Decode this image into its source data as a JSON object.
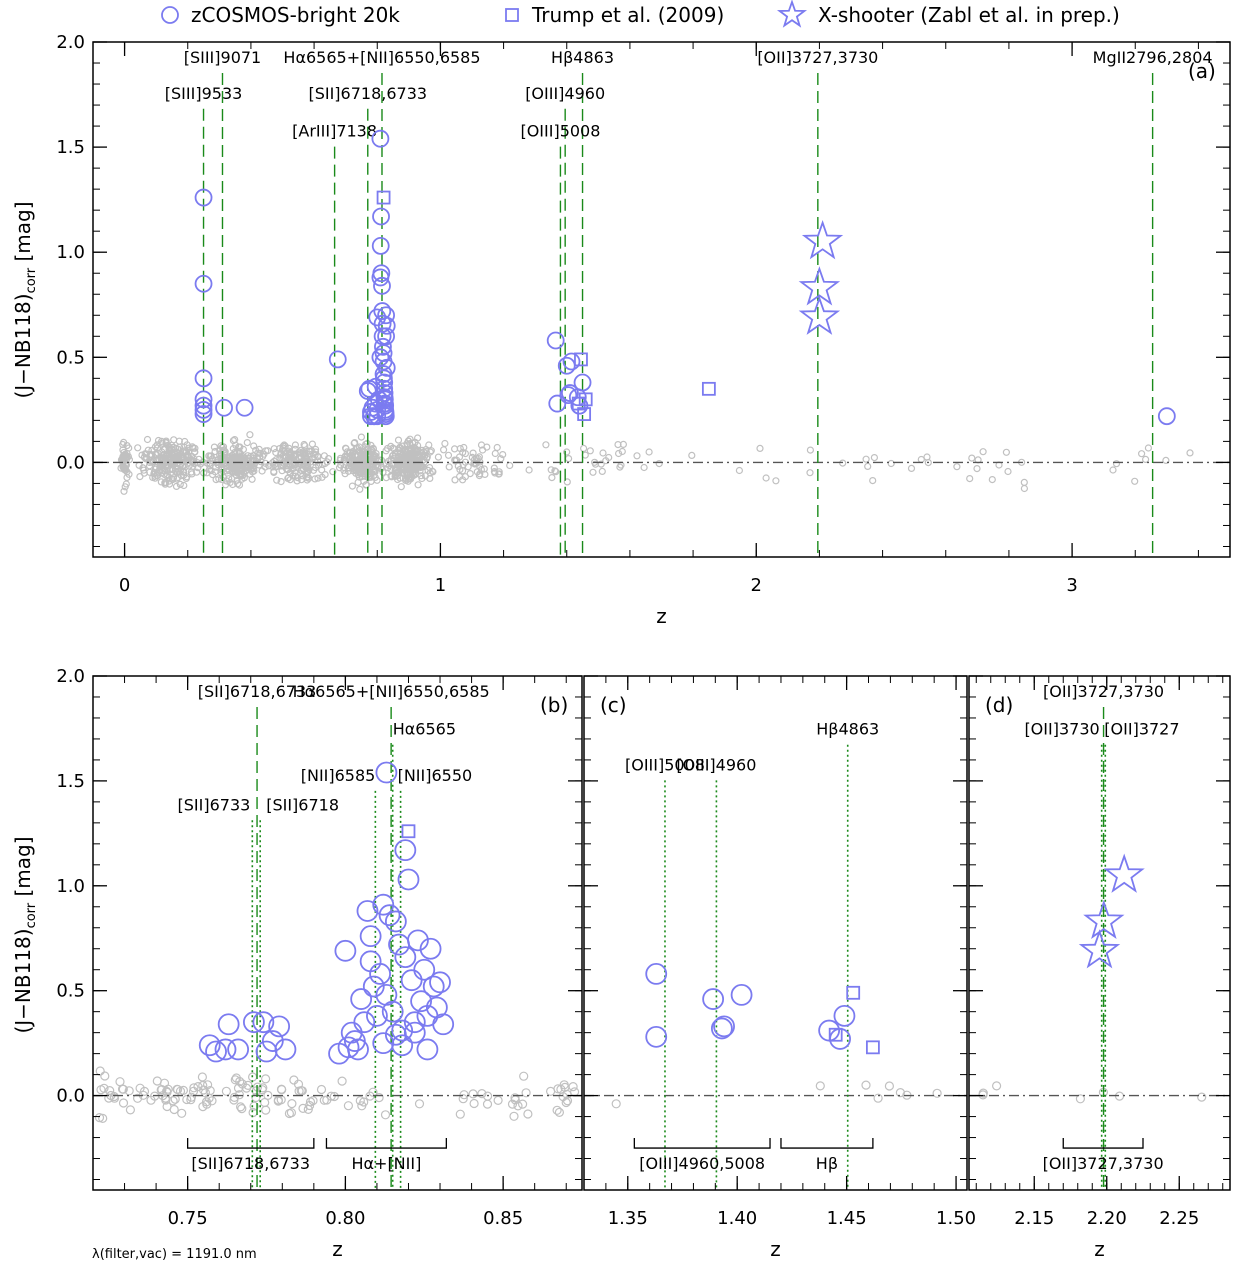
{
  "legend": [
    {
      "marker": "circle",
      "label": "zCOSMOS-bright 20k"
    },
    {
      "marker": "square",
      "label": "Trump et al. (2009)"
    },
    {
      "marker": "star",
      "label": "X-shooter (Zabl et al. in prep.)"
    }
  ],
  "ylabel_main": "(J−NB118)",
  "ylabel_sub": "corr",
  "ylabel_unit": " [mag]",
  "footnote": "λ(filter,vac) = 1191.0 nm",
  "colors": {
    "highlight": "#7b7bf0",
    "background": "#c0c0c0",
    "line": "#1a8a1a",
    "zero": "#555555"
  },
  "chart_data": [
    {
      "type": "scatter",
      "panel": "(a)",
      "xlabel": "z",
      "xlim": [
        -0.1,
        3.5
      ],
      "ylim": [
        -0.45,
        2.0
      ],
      "xticks": [
        0,
        1,
        2,
        3
      ],
      "yticks": [
        0.0,
        0.5,
        1.0,
        1.5,
        2.0
      ],
      "xtick_labels": [
        "0",
        "1",
        "2",
        "3"
      ],
      "ytick_labels": [
        "0.0",
        "0.5",
        "1.0",
        "1.5",
        "2.0"
      ],
      "lines": [
        {
          "z": 0.25,
          "style": "dashed",
          "label": "[SIII]9533",
          "ly": 1.73
        },
        {
          "z": 0.31,
          "style": "dashed",
          "label": "[SIII]9071",
          "ly": 1.9
        },
        {
          "z": 0.665,
          "style": "dashed",
          "label": "[ArIII]7138",
          "ly": 1.55
        },
        {
          "z": 0.77,
          "style": "dashed",
          "label": "[SII]6718,6733",
          "ly": 1.73
        },
        {
          "z": 0.815,
          "style": "dashed",
          "label": "Hα6565+[NII]6550,6585",
          "ly": 1.9
        },
        {
          "z": 1.38,
          "style": "dashed",
          "label": "[OIII]5008",
          "ly": 1.55
        },
        {
          "z": 1.395,
          "style": "dashed",
          "label": "[OIII]4960",
          "ly": 1.73
        },
        {
          "z": 1.45,
          "style": "dashed",
          "label": "Hβ4863",
          "ly": 1.9
        },
        {
          "z": 2.195,
          "style": "dashed",
          "label": "[OII]3727,3730",
          "ly": 1.9
        },
        {
          "z": 3.255,
          "style": "dashed",
          "label": "MgII2796,2804",
          "ly": 1.9
        }
      ],
      "series": [
        {
          "name": "zCOSMOS-bright 20k",
          "marker": "circle",
          "x": [
            0.25,
            0.25,
            0.25,
            0.25,
            0.25,
            0.25,
            0.25,
            0.315,
            0.38,
            0.675,
            0.77,
            0.775,
            0.78,
            0.79,
            0.795,
            0.8,
            0.81,
            0.81,
            0.81,
            0.811,
            0.812,
            0.813,
            0.815,
            0.816,
            0.817,
            0.817,
            0.818,
            0.82,
            0.82,
            0.82,
            0.821,
            0.822,
            0.822,
            0.823,
            0.823,
            0.824,
            0.824,
            0.825,
            0.825,
            0.826,
            0.826,
            0.827,
            0.828,
            0.828,
            0.83,
            0.83,
            0.79,
            0.8,
            0.78,
            0.785,
            0.805,
            0.8,
            0.795,
            1.365,
            1.37,
            1.4,
            1.405,
            1.41,
            1.415,
            1.435,
            1.44,
            1.45,
            3.3
          ],
          "y": [
            1.26,
            0.85,
            0.4,
            0.3,
            0.27,
            0.25,
            0.23,
            0.26,
            0.26,
            0.49,
            0.34,
            0.35,
            0.22,
            0.22,
            0.36,
            0.69,
            1.54,
            0.88,
            0.5,
            1.03,
            1.17,
            0.9,
            0.84,
            0.72,
            0.66,
            0.6,
            0.55,
            0.52,
            0.48,
            0.42,
            0.4,
            0.38,
            0.35,
            0.33,
            0.31,
            0.3,
            0.28,
            0.27,
            0.25,
            0.24,
            0.23,
            0.22,
            0.6,
            0.7,
            0.45,
            0.65,
            0.22,
            0.22,
            0.24,
            0.26,
            0.3,
            0.25,
            0.28,
            0.58,
            0.28,
            0.46,
            0.32,
            0.33,
            0.48,
            0.31,
            0.27,
            0.38,
            0.22
          ]
        },
        {
          "name": "Trump et al. (2009)",
          "marker": "square",
          "x": [
            0.82,
            1.438,
            1.445,
            1.455,
            1.46,
            1.85
          ],
          "y": [
            1.26,
            0.28,
            0.49,
            0.23,
            0.3,
            0.35
          ]
        },
        {
          "name": "X-shooter (Zabl et al. in prep.)",
          "marker": "star",
          "x": [
            2.2,
            2.2,
            2.21
          ],
          "y": [
            0.69,
            0.83,
            1.05
          ]
        }
      ]
    },
    {
      "type": "scatter",
      "panel": "(b)",
      "xlabel": "z",
      "xlim": [
        0.72,
        0.875
      ],
      "ylim": [
        -0.45,
        2.0
      ],
      "xticks": [
        0.75,
        0.8,
        0.85
      ],
      "yticks": [
        0.0,
        0.5,
        1.0,
        1.5,
        2.0
      ],
      "xtick_labels": [
        "0.75",
        "0.80",
        "0.85"
      ],
      "ytick_labels": [
        "0.0",
        "0.5",
        "1.0",
        "1.5",
        "2.0"
      ],
      "lines": [
        {
          "z": 0.7705,
          "style": "dotted",
          "label": "[SII]6733",
          "ly": 1.36
        },
        {
          "z": 0.773,
          "style": "dotted",
          "label": "[SII]6718",
          "ly": 1.36
        },
        {
          "z": 0.772,
          "style": "dashed",
          "label": "[SII]6718,6733",
          "ly": 1.9
        },
        {
          "z": 0.8095,
          "style": "dotted",
          "label": "[NII]6585",
          "ly": 1.5
        },
        {
          "z": 0.815,
          "style": "dotted",
          "label": "Hα6565",
          "ly": 1.72
        },
        {
          "z": 0.8175,
          "style": "dotted",
          "label": "[NII]6550",
          "ly": 1.5
        },
        {
          "z": 0.8145,
          "style": "dashed",
          "label": "Hα6565+[NII]6550,6585",
          "ly": 1.9
        }
      ],
      "brackets": [
        {
          "x0": 0.75,
          "x1": 0.79,
          "label": "[SII]6718,6733"
        },
        {
          "x0": 0.794,
          "x1": 0.832,
          "label": "Hα+[NII]"
        }
      ],
      "series": [
        {
          "name": "zCOSMOS-bright 20k",
          "marker": "circle",
          "x": [
            0.757,
            0.759,
            0.762,
            0.763,
            0.766,
            0.771,
            0.774,
            0.775,
            0.777,
            0.779,
            0.781,
            0.798,
            0.8,
            0.801,
            0.802,
            0.804,
            0.805,
            0.806,
            0.807,
            0.808,
            0.809,
            0.81,
            0.811,
            0.812,
            0.813,
            0.814,
            0.815,
            0.816,
            0.817,
            0.818,
            0.819,
            0.82,
            0.821,
            0.822,
            0.823,
            0.824,
            0.825,
            0.826,
            0.827,
            0.828,
            0.829,
            0.83,
            0.831,
            0.812,
            0.819,
            0.822,
            0.808,
            0.813,
            0.803,
            0.818,
            0.826,
            0.816
          ],
          "y": [
            0.24,
            0.21,
            0.22,
            0.34,
            0.22,
            0.35,
            0.35,
            0.21,
            0.26,
            0.33,
            0.22,
            0.2,
            0.69,
            0.23,
            0.3,
            0.22,
            0.46,
            0.35,
            0.88,
            0.76,
            0.52,
            0.38,
            0.58,
            0.25,
            1.54,
            0.86,
            0.4,
            0.83,
            0.72,
            0.31,
            0.66,
            1.03,
            0.55,
            0.35,
            0.74,
            0.45,
            0.6,
            0.38,
            0.7,
            0.52,
            0.42,
            0.54,
            0.34,
            0.91,
            1.17,
            0.3,
            0.64,
            0.48,
            0.26,
            0.24,
            0.22,
            0.29
          ]
        },
        {
          "name": "Trump et al. (2009)",
          "marker": "square",
          "x": [
            0.82
          ],
          "y": [
            1.26
          ]
        }
      ]
    },
    {
      "type": "scatter",
      "panel": "(c)",
      "xlabel": "z",
      "xlim": [
        1.33,
        1.505
      ],
      "ylim": [
        -0.45,
        2.0
      ],
      "xticks": [
        1.35,
        1.4,
        1.45,
        1.5
      ],
      "xtick_labels": [
        "1.35",
        "1.40",
        "1.45",
        "1.50"
      ],
      "lines": [
        {
          "z": 1.367,
          "style": "dotted",
          "label": "[OIII]5008",
          "ly": 1.55
        },
        {
          "z": 1.3905,
          "style": "dotted",
          "label": "[OIII]4960",
          "ly": 1.55
        },
        {
          "z": 1.4505,
          "style": "dotted",
          "label": "Hβ4863",
          "ly": 1.72
        }
      ],
      "brackets": [
        {
          "x0": 1.353,
          "x1": 1.415,
          "label": "[OIII]4960,5008"
        },
        {
          "x0": 1.42,
          "x1": 1.462,
          "label": "Hβ"
        }
      ],
      "series": [
        {
          "name": "zCOSMOS-bright 20k",
          "marker": "circle",
          "x": [
            1.363,
            1.363,
            1.389,
            1.393,
            1.394,
            1.402,
            1.442,
            1.447,
            1.449
          ],
          "y": [
            0.58,
            0.28,
            0.46,
            0.32,
            0.33,
            0.48,
            0.31,
            0.27,
            0.38
          ]
        },
        {
          "name": "Trump et al. (2009)",
          "marker": "square",
          "x": [
            1.445,
            1.453,
            1.462
          ],
          "y": [
            0.29,
            0.49,
            0.23
          ]
        }
      ]
    },
    {
      "type": "scatter",
      "panel": "(d)",
      "xlabel": "z",
      "xlim": [
        2.105,
        2.285
      ],
      "ylim": [
        -0.45,
        2.0
      ],
      "xticks": [
        2.15,
        2.2,
        2.25
      ],
      "xtick_labels": [
        "2.15",
        "2.20",
        "2.25"
      ],
      "lines": [
        {
          "z": 2.1965,
          "style": "dotted",
          "label": "[OII]3730",
          "ly": 1.72
        },
        {
          "z": 2.199,
          "style": "dotted",
          "label": "[OII]3727",
          "ly": 1.72
        },
        {
          "z": 2.1978,
          "style": "dashed",
          "label": "[OII]3727,3730",
          "ly": 1.9
        }
      ],
      "brackets": [
        {
          "x0": 2.17,
          "x1": 2.225,
          "label": "[OII]3727,3730"
        }
      ],
      "series": [
        {
          "name": "X-shooter (Zabl et al. in prep.)",
          "marker": "star",
          "x": [
            2.195,
            2.198,
            2.212
          ],
          "y": [
            0.69,
            0.83,
            1.05
          ]
        }
      ]
    }
  ]
}
